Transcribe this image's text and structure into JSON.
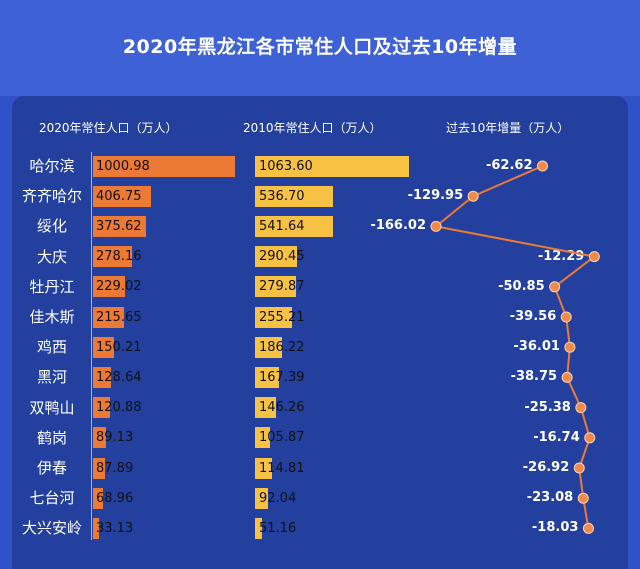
{
  "title": "2020年黑龙江各市常住人口及过去10年增量",
  "headers": {
    "col2020": "2020年常住人口（万人）",
    "col2010": "2010年常住人口（万人）",
    "colchange": "过去10年增量（万人）"
  },
  "chart_data": {
    "type": "bar",
    "title": "2020年黑龙江各市常住人口及过去10年增量",
    "categories": [
      "哈尔滨",
      "齐齐哈尔",
      "绥化",
      "大庆",
      "牡丹江",
      "佳木斯",
      "鸡西",
      "黑河",
      "双鸭山",
      "鹤岗",
      "伊春",
      "七台河",
      "大兴安岭"
    ],
    "series": [
      {
        "name": "2020年常住人口（万人）",
        "values": [
          1000.98,
          406.75,
          375.62,
          278.16,
          229.02,
          215.65,
          150.21,
          128.64,
          120.88,
          89.13,
          87.89,
          68.96,
          33.13
        ]
      },
      {
        "name": "2010年常住人口（万人）",
        "values": [
          1063.6,
          536.7,
          541.64,
          290.45,
          279.87,
          255.21,
          186.22,
          167.39,
          146.26,
          105.87,
          114.81,
          92.04,
          51.16
        ]
      },
      {
        "name": "过去10年增量（万人）",
        "values": [
          -62.62,
          -129.95,
          -166.02,
          -12.29,
          -50.85,
          -39.56,
          -36.01,
          -38.75,
          -25.38,
          -16.74,
          -26.92,
          -23.08,
          -18.03
        ]
      }
    ],
    "labels2020": [
      "1000.98",
      "406.75",
      "375.62",
      "278.16",
      "229.02",
      "215.65",
      "150.21",
      "128.64",
      "120.88",
      "89.13",
      "87.89",
      "68.96",
      "33.13"
    ],
    "labels2010": [
      "1063.60",
      "536.70",
      "541.64",
      "290.45",
      "279.87",
      "255.21",
      "186.22",
      "167.39",
      "146.26",
      "105.87",
      "114.81",
      "92.04",
      "51.16"
    ],
    "labelsChange": [
      "-62.62",
      "-129.95",
      "-166.02",
      "-12.29",
      "-50.85",
      "-39.56",
      "-36.01",
      "-38.75",
      "-25.38",
      "-16.74",
      "-26.92",
      "-23.08",
      "-18.03"
    ],
    "colors": {
      "bar2020": "#ec7a34",
      "bar2010": "#f7c244",
      "line": "#ec7a34",
      "dot": "#f08a4b"
    }
  }
}
